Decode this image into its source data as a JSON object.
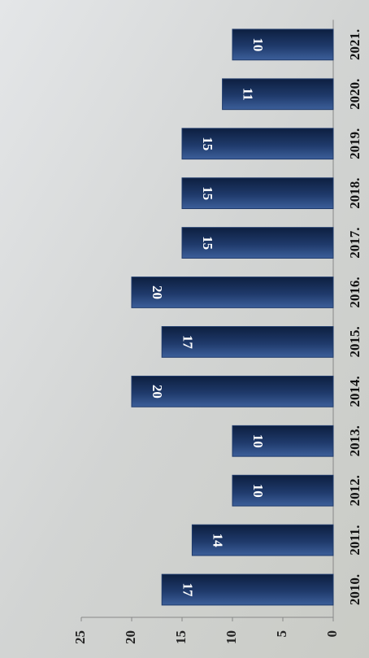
{
  "chart_data": {
    "type": "bar",
    "categories": [
      "2010.",
      "2011.",
      "2012.",
      "2013.",
      "2014.",
      "2015.",
      "2016.",
      "2017.",
      "2018.",
      "2019.",
      "2020.",
      "2021."
    ],
    "values": [
      17,
      14,
      10,
      10,
      20,
      17,
      20,
      15,
      15,
      15,
      11,
      10
    ],
    "color": "#1f3a6b",
    "ylim": [
      0,
      25
    ],
    "yticks": [
      0,
      5,
      10,
      15,
      20,
      25
    ],
    "grid": false
  }
}
